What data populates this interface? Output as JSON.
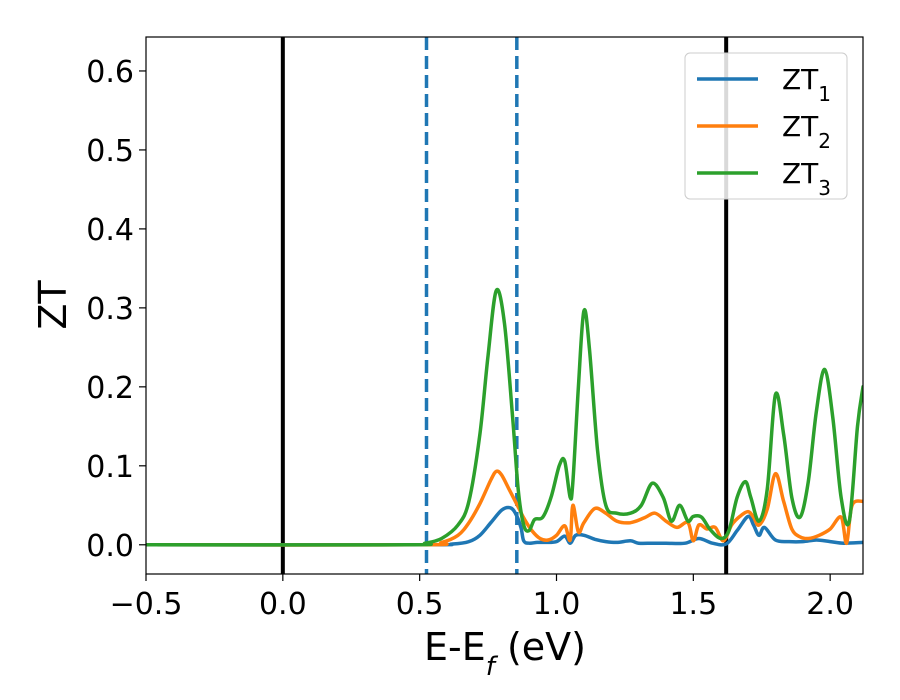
{
  "chart_data": {
    "type": "line",
    "title": "",
    "xlabel": "E-E",
    "xlabel_sub": "f",
    "xlabel_unit": " (eV)",
    "ylabel": "ZT",
    "xlim": [
      -0.5,
      2.12
    ],
    "ylim": [
      -0.037,
      0.643
    ],
    "grid": false,
    "legend_position": "top-right",
    "x_ticks": [
      {
        "value": -0.5,
        "label": "−0.5"
      },
      {
        "value": 0.0,
        "label": "0.0"
      },
      {
        "value": 0.5,
        "label": "0.5"
      },
      {
        "value": 1.0,
        "label": "1.0"
      },
      {
        "value": 1.5,
        "label": "1.5"
      },
      {
        "value": 2.0,
        "label": "2.0"
      }
    ],
    "y_ticks": [
      {
        "value": 0.0,
        "label": "0.0"
      },
      {
        "value": 0.1,
        "label": "0.1"
      },
      {
        "value": 0.2,
        "label": "0.2"
      },
      {
        "value": 0.3,
        "label": "0.3"
      },
      {
        "value": 0.4,
        "label": "0.4"
      },
      {
        "value": 0.5,
        "label": "0.5"
      },
      {
        "value": 0.6,
        "label": "0.6"
      }
    ],
    "vertical_lines": [
      {
        "x": 0.0,
        "style": "solid",
        "color": "#000000"
      },
      {
        "x": 0.525,
        "style": "dashed",
        "color": "#1f77b4"
      },
      {
        "x": 0.855,
        "style": "dashed",
        "color": "#1f77b4"
      },
      {
        "x": 1.62,
        "style": "solid",
        "color": "#000000"
      }
    ],
    "series": [
      {
        "name": "ZT",
        "sub": "1",
        "color": "#1f77b4",
        "x": [
          -0.5,
          0.5,
          0.62,
          0.68,
          0.72,
          0.76,
          0.8,
          0.83,
          0.85,
          0.87,
          0.88,
          0.9,
          0.93,
          0.96,
          1.0,
          1.03,
          1.05,
          1.07,
          1.1,
          1.14,
          1.18,
          1.22,
          1.27,
          1.3,
          1.35,
          1.4,
          1.47,
          1.52,
          1.57,
          1.62,
          1.66,
          1.7,
          1.72,
          1.74,
          1.76,
          1.8,
          1.85,
          1.9,
          1.95,
          2.0,
          2.05,
          2.12
        ],
        "y": [
          0,
          0,
          0.001,
          0.004,
          0.012,
          0.028,
          0.044,
          0.047,
          0.04,
          0.022,
          0.005,
          0.002,
          0.003,
          0.003,
          0.004,
          0.011,
          0.002,
          0.012,
          0.012,
          0.007,
          0.004,
          0.003,
          0.005,
          0.002,
          0.002,
          0.002,
          0.002,
          0.008,
          0.002,
          0.001,
          0.018,
          0.036,
          0.025,
          0.012,
          0.022,
          0.006,
          0.004,
          0.004,
          0.006,
          0.004,
          0.002,
          0.003
        ]
      },
      {
        "name": "ZT",
        "sub": "2",
        "color": "#ff7f0e",
        "x": [
          -0.5,
          0.5,
          0.58,
          0.64,
          0.68,
          0.72,
          0.76,
          0.78,
          0.8,
          0.83,
          0.86,
          0.88,
          0.91,
          0.94,
          0.97,
          1.0,
          1.03,
          1.05,
          1.06,
          1.08,
          1.1,
          1.14,
          1.18,
          1.22,
          1.27,
          1.32,
          1.36,
          1.4,
          1.44,
          1.48,
          1.5,
          1.52,
          1.55,
          1.58,
          1.61,
          1.64,
          1.67,
          1.7,
          1.72,
          1.74,
          1.77,
          1.8,
          1.83,
          1.86,
          1.89,
          1.92,
          1.96,
          2.0,
          2.04,
          2.06,
          2.08,
          2.12
        ],
        "y": [
          0,
          0,
          0.003,
          0.012,
          0.028,
          0.052,
          0.082,
          0.093,
          0.088,
          0.068,
          0.048,
          0.034,
          0.018,
          0.008,
          0.006,
          0.012,
          0.024,
          0.006,
          0.05,
          0.016,
          0.028,
          0.046,
          0.04,
          0.03,
          0.028,
          0.034,
          0.04,
          0.03,
          0.022,
          0.028,
          0.005,
          0.025,
          0.02,
          0.022,
          0.005,
          0.025,
          0.036,
          0.042,
          0.035,
          0.025,
          0.045,
          0.09,
          0.055,
          0.02,
          0.01,
          0.008,
          0.012,
          0.02,
          0.035,
          0.002,
          0.05,
          0.055
        ]
      },
      {
        "name": "ZT",
        "sub": "3",
        "color": "#2ca02c",
        "x": [
          -0.5,
          0.45,
          0.52,
          0.58,
          0.64,
          0.68,
          0.72,
          0.75,
          0.78,
          0.81,
          0.84,
          0.86,
          0.88,
          0.9,
          0.92,
          0.95,
          0.98,
          1.01,
          1.03,
          1.05,
          1.06,
          1.08,
          1.1,
          1.12,
          1.15,
          1.18,
          1.22,
          1.27,
          1.31,
          1.35,
          1.39,
          1.42,
          1.45,
          1.48,
          1.5,
          1.53,
          1.56,
          1.6,
          1.63,
          1.66,
          1.69,
          1.71,
          1.74,
          1.77,
          1.8,
          1.83,
          1.86,
          1.89,
          1.92,
          1.95,
          1.98,
          2.01,
          2.04,
          2.07,
          2.1,
          2.12
        ],
        "y": [
          0,
          0,
          0.002,
          0.008,
          0.025,
          0.055,
          0.14,
          0.24,
          0.322,
          0.28,
          0.16,
          0.07,
          0.025,
          0.018,
          0.032,
          0.035,
          0.06,
          0.1,
          0.106,
          0.06,
          0.08,
          0.2,
          0.296,
          0.25,
          0.12,
          0.05,
          0.04,
          0.04,
          0.05,
          0.078,
          0.06,
          0.03,
          0.05,
          0.03,
          0.036,
          0.035,
          0.02,
          0.008,
          0.018,
          0.06,
          0.08,
          0.06,
          0.03,
          0.07,
          0.19,
          0.14,
          0.06,
          0.035,
          0.08,
          0.17,
          0.222,
          0.16,
          0.06,
          0.03,
          0.15,
          0.2
        ]
      }
    ]
  }
}
